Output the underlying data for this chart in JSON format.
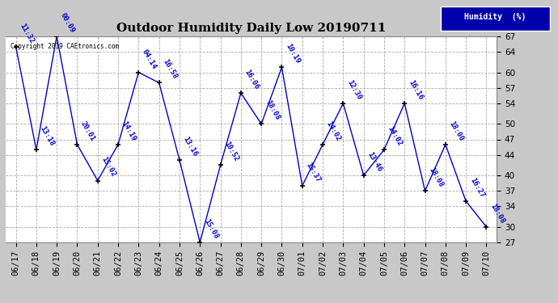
{
  "title": "Outdoor Humidity Daily Low 20190711",
  "copyright": "Copyright 2019 CAEtronics.com",
  "legend_label": "Humidity  (%)",
  "x_labels": [
    "06/17",
    "06/18",
    "06/19",
    "06/20",
    "06/21",
    "06/22",
    "06/23",
    "06/24",
    "06/25",
    "06/26",
    "06/27",
    "06/28",
    "06/29",
    "06/30",
    "07/01",
    "07/02",
    "07/03",
    "07/04",
    "07/05",
    "07/06",
    "07/07",
    "07/08",
    "07/09",
    "07/10"
  ],
  "y_values": [
    65,
    45,
    67,
    46,
    39,
    46,
    60,
    58,
    43,
    27,
    42,
    56,
    50,
    61,
    38,
    46,
    54,
    40,
    45,
    54,
    37,
    46,
    35,
    30
  ],
  "point_labels": [
    "11:32",
    "13:18",
    "00:09",
    "20:01",
    "15:02",
    "14:19",
    "04:14",
    "16:58",
    "13:16",
    "15:08",
    "10:52",
    "16:06",
    "18:08",
    "10:19",
    "15:37",
    "14:02",
    "12:30",
    "13:46",
    "14:02",
    "16:16",
    "18:08",
    "18:00",
    "16:27",
    "18:08"
  ],
  "ylim_min": 27,
  "ylim_max": 67,
  "yticks": [
    27,
    30,
    34,
    37,
    40,
    44,
    47,
    50,
    54,
    57,
    60,
    64,
    67
  ],
  "line_color": "#0000cc",
  "marker_color": "#000000",
  "bg_color": "#c8c8c8",
  "plot_bg_color": "#ffffff",
  "grid_color": "#aaaaaa",
  "title_fontsize": 11,
  "label_fontsize": 6.5,
  "tick_fontsize": 7.5,
  "legend_bg": "#0000aa",
  "legend_fg": "#ffffff"
}
